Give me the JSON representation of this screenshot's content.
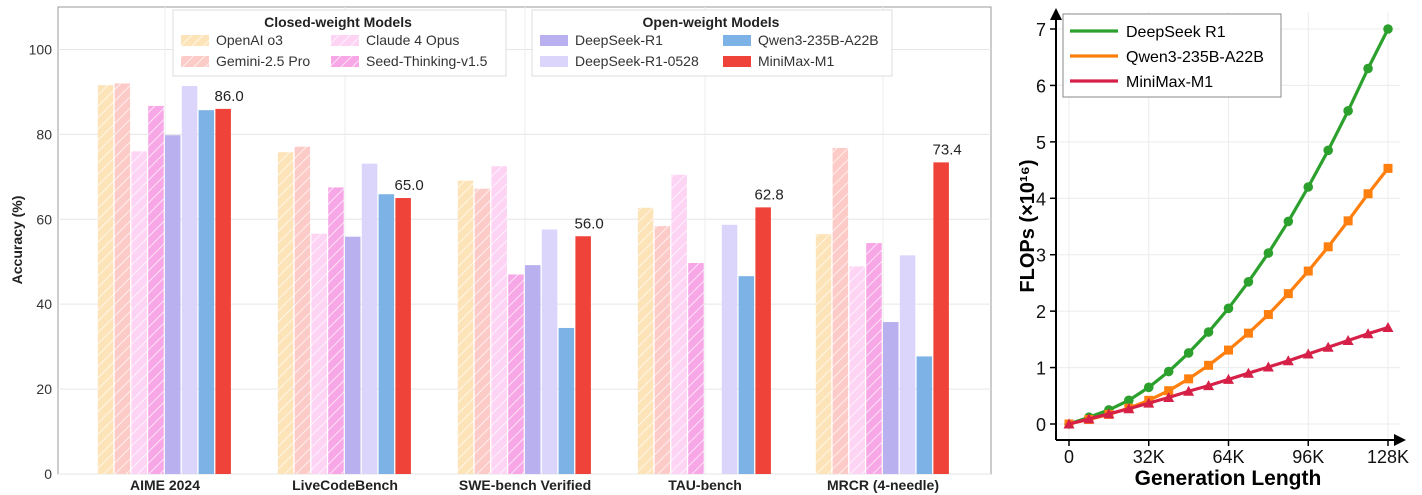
{
  "chart_data": [
    {
      "type": "bar",
      "ylabel": "Accuracy (%)",
      "ylim": [
        0,
        110
      ],
      "yticks": [
        0,
        20,
        40,
        60,
        80,
        100
      ],
      "grid": true,
      "categories": [
        "AIME 2024",
        "LiveCodeBench",
        "SWE-bench Verified",
        "TAU-bench",
        "MRCR (4-needle)"
      ],
      "legend": {
        "placement": "top",
        "groups": [
          {
            "title": "Closed-weight Models",
            "entries": [
              "OpenAI o3",
              "Gemini-2.5 Pro",
              "Claude 4 Opus",
              "Seed-Thinking-v1.5"
            ]
          },
          {
            "title": "Open-weight Models",
            "entries": [
              "DeepSeek-R1",
              "DeepSeek-R1-0528",
              "Qwen3-235B-A22B",
              "MiniMax-M1"
            ]
          }
        ]
      },
      "series": [
        {
          "name": "OpenAI o3",
          "group": "closed",
          "color": "#fde3b8",
          "hatch": true,
          "values": [
            91.6,
            75.8,
            69.1,
            62.7,
            56.5
          ]
        },
        {
          "name": "Gemini-2.5 Pro",
          "group": "closed",
          "color": "#fccbc8",
          "hatch": true,
          "values": [
            92.0,
            77.1,
            67.2,
            58.4,
            76.8
          ]
        },
        {
          "name": "Claude 4 Opus",
          "group": "closed",
          "color": "#fdd4f4",
          "hatch": true,
          "values": [
            76.0,
            56.6,
            72.5,
            70.5,
            48.9
          ]
        },
        {
          "name": "Seed-Thinking-v1.5",
          "group": "closed",
          "color": "#f7a6e6",
          "hatch": true,
          "values": [
            86.7,
            67.5,
            47.0,
            49.7,
            54.4
          ]
        },
        {
          "name": "DeepSeek-R1",
          "group": "open",
          "color": "#b9b1ef",
          "hatch": false,
          "values": [
            79.8,
            55.9,
            49.2,
            0,
            35.8
          ]
        },
        {
          "name": "DeepSeek-R1-0528",
          "group": "open",
          "color": "#dcd5fb",
          "hatch": false,
          "values": [
            91.4,
            73.1,
            57.6,
            58.7,
            51.5
          ]
        },
        {
          "name": "Qwen3-235B-A22B",
          "group": "open",
          "color": "#7cb2e6",
          "hatch": false,
          "values": [
            85.7,
            65.9,
            34.4,
            46.6,
            27.7
          ]
        },
        {
          "name": "MiniMax-M1",
          "group": "open",
          "color": "#ef4238",
          "hatch": false,
          "values": [
            86.0,
            65.0,
            56.0,
            62.8,
            73.4
          ]
        }
      ],
      "data_labels": {
        "series": "MiniMax-M1",
        "labels": [
          "86.0",
          "65.0",
          "56.0",
          "62.8",
          "73.4"
        ]
      }
    },
    {
      "type": "line",
      "xlabel": "Generation Length",
      "ylabel": "FLOPs (×10¹⁶)",
      "xlim": [
        0,
        128000
      ],
      "ylim": [
        0,
        7
      ],
      "xticks": [
        0,
        32000,
        64000,
        96000,
        128000
      ],
      "xtick_labels": [
        "0",
        "32K",
        "64K",
        "96K",
        "128K"
      ],
      "yticks": [
        0,
        1,
        2,
        3,
        4,
        5,
        6,
        7
      ],
      "ytick_labels": [
        "0",
        "1",
        "2",
        "3",
        "4",
        "5",
        "6",
        "7"
      ],
      "grid": true,
      "legend_placement": "top-left",
      "x": [
        0,
        8000,
        16000,
        24000,
        32000,
        40000,
        48000,
        56000,
        64000,
        72000,
        80000,
        88000,
        96000,
        104000,
        112000,
        120000,
        128000
      ],
      "series": [
        {
          "name": "DeepSeek R1",
          "color": "#2ca02c",
          "marker": "circle",
          "values": [
            0,
            0.12,
            0.25,
            0.42,
            0.65,
            0.93,
            1.26,
            1.63,
            2.05,
            2.52,
            3.03,
            3.59,
            4.2,
            4.85,
            5.55,
            6.3,
            7.0
          ]
        },
        {
          "name": "Qwen3-235B-A22B",
          "color": "#ff7f0e",
          "marker": "square",
          "values": [
            0,
            0.08,
            0.17,
            0.28,
            0.42,
            0.59,
            0.8,
            1.04,
            1.31,
            1.61,
            1.94,
            2.31,
            2.71,
            3.14,
            3.6,
            4.08,
            4.53
          ]
        },
        {
          "name": "MiniMax-M1",
          "color": "#d62048",
          "marker": "triangle",
          "values": [
            0,
            0.09,
            0.18,
            0.27,
            0.37,
            0.47,
            0.58,
            0.68,
            0.79,
            0.9,
            1.01,
            1.12,
            1.24,
            1.36,
            1.48,
            1.6,
            1.71
          ]
        }
      ]
    }
  ]
}
